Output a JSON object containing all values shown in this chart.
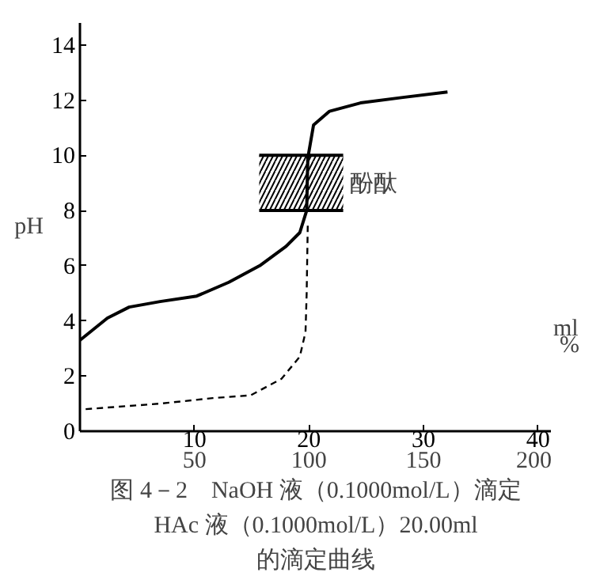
{
  "chart_data": {
    "type": "line",
    "title": "图 4－2　NaOH 液（0.1000mol/L）滴定\nHAc 液（0.1000mol/L）20.00ml\n的滴定曲线",
    "xlabel": "ml",
    "x2label": "%",
    "ylabel": "pH",
    "xlim": [
      0,
      41.2
    ],
    "xticks": [
      10,
      20,
      30,
      40
    ],
    "x2lim": [
      0,
      206
    ],
    "x2ticks": [
      50,
      100,
      150,
      200
    ],
    "ylim": [
      0,
      14.8
    ],
    "yticks": [
      0,
      2,
      4,
      6,
      8,
      10,
      12,
      14
    ],
    "grid": false,
    "marker": "none",
    "series": [
      {
        "color": "#000000",
        "line_style": "solid",
        "x": [
          0,
          2.4,
          4.3,
          7.0,
          10.2,
          13,
          15.7,
          18,
          19.2,
          19.8,
          19.9,
          20.4,
          21.8,
          24.5,
          28.2,
          32.1
        ],
        "values": [
          3.3,
          4.1,
          4.5,
          4.7,
          4.9,
          5.4,
          6.0,
          6.7,
          7.2,
          8.0,
          9.9,
          11.1,
          11.6,
          11.9,
          12.1,
          12.3
        ]
      },
      {
        "color": "#000000",
        "line_style": "dashed",
        "x": [
          0.5,
          7,
          11.6,
          14.9,
          17.6,
          19.2,
          19.7,
          19.8,
          19.9
        ],
        "values": [
          0.8,
          1.0,
          1.2,
          1.3,
          1.9,
          2.7,
          3.6,
          5.0,
          7.6
        ]
      }
    ],
    "bands": [
      {
        "axis": "y",
        "from": 8,
        "to": 10,
        "label": "酚酞",
        "color": "#000000"
      }
    ]
  }
}
